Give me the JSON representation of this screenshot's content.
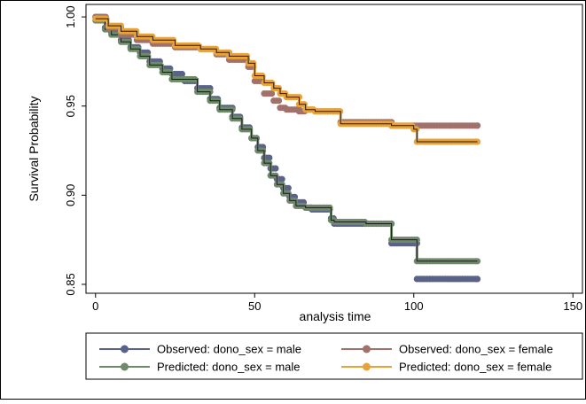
{
  "chart_data": {
    "type": "line",
    "xlabel": "analysis time",
    "ylabel": "Survival Probability",
    "xlim": [
      -3,
      153
    ],
    "ylim": [
      0.845,
      1.007
    ],
    "x_ticks": [
      0,
      50,
      100,
      150
    ],
    "x_tick_labels": [
      "0",
      "50",
      "100",
      "150"
    ],
    "y_ticks": [
      0.85,
      0.9,
      0.95,
      1.0
    ],
    "y_tick_labels": [
      "0.85",
      "0.90",
      "0.95",
      "1.00"
    ],
    "grid": false,
    "legend_position": "bottom",
    "series": [
      {
        "name": "Observed: dono_sex = male",
        "color": "#5b6289",
        "style": "markers",
        "x": [
          0,
          3,
          5,
          8,
          11,
          14,
          17,
          21,
          24,
          28,
          32,
          36,
          39,
          43,
          46,
          49,
          51,
          53,
          55,
          57,
          59,
          61,
          63,
          66,
          68,
          74,
          75,
          85,
          93,
          101,
          120
        ],
        "y": [
          1.0,
          0.994,
          0.991,
          0.987,
          0.983,
          0.98,
          0.975,
          0.971,
          0.968,
          0.964,
          0.96,
          0.954,
          0.949,
          0.944,
          0.938,
          0.932,
          0.927,
          0.921,
          0.915,
          0.909,
          0.904,
          0.899,
          0.896,
          0.893,
          0.892,
          0.887,
          0.884,
          0.884,
          0.873,
          0.853,
          0.853
        ]
      },
      {
        "name": "Observed: dono_sex = female",
        "color": "#a1716b",
        "style": "markers",
        "x": [
          0,
          4,
          8,
          13,
          18,
          25,
          33,
          38,
          42,
          48,
          50,
          53,
          56,
          58,
          60,
          64,
          66,
          69,
          76,
          77,
          93,
          100,
          120
        ],
        "y": [
          1.0,
          0.994,
          0.99,
          0.987,
          0.985,
          0.983,
          0.982,
          0.979,
          0.976,
          0.972,
          0.964,
          0.957,
          0.953,
          0.949,
          0.948,
          0.947,
          0.948,
          0.947,
          0.947,
          0.941,
          0.939,
          0.939,
          0.939
        ]
      },
      {
        "name": "Predicted: dono_sex = male",
        "color": "#6e8a6b",
        "style": "line-markers",
        "x": [
          0,
          3,
          5,
          8,
          11,
          14,
          17,
          21,
          24,
          28,
          32,
          36,
          39,
          43,
          46,
          49,
          51,
          53,
          55,
          57,
          59,
          61,
          63,
          66,
          68,
          74,
          75,
          85,
          93,
          101,
          120
        ],
        "y": [
          0.998,
          0.993,
          0.99,
          0.986,
          0.982,
          0.978,
          0.973,
          0.969,
          0.965,
          0.965,
          0.958,
          0.953,
          0.948,
          0.943,
          0.937,
          0.932,
          0.925,
          0.918,
          0.911,
          0.906,
          0.901,
          0.897,
          0.894,
          0.893,
          0.893,
          0.886,
          0.885,
          0.884,
          0.875,
          0.863,
          0.863
        ]
      },
      {
        "name": "Predicted: dono_sex = female",
        "color": "#e8a23a",
        "style": "line-markers",
        "x": [
          0,
          4,
          8,
          13,
          18,
          25,
          33,
          38,
          42,
          48,
          50,
          53,
          56,
          58,
          60,
          64,
          66,
          69,
          76,
          77,
          93,
          100,
          101,
          120
        ],
        "y": [
          0.999,
          0.995,
          0.992,
          0.989,
          0.987,
          0.984,
          0.982,
          0.98,
          0.978,
          0.974,
          0.967,
          0.963,
          0.96,
          0.957,
          0.955,
          0.951,
          0.948,
          0.947,
          0.947,
          0.94,
          0.939,
          0.937,
          0.93,
          0.93
        ]
      }
    ]
  }
}
